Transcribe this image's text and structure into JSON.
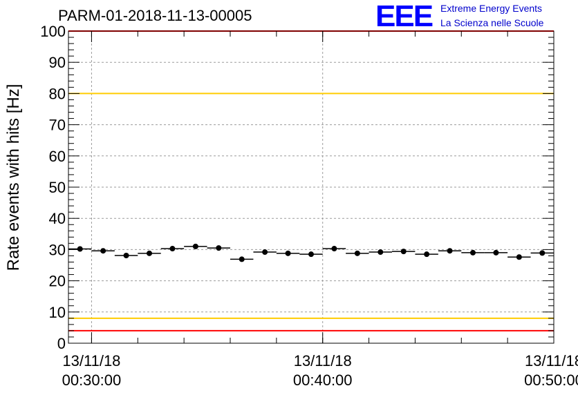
{
  "title": "PARM-01-2018-11-13-00005",
  "logo": {
    "mark": "EEE",
    "line1": "Extreme Energy Events",
    "line2": "La Scienza nelle Scuole",
    "color": "#0000ff"
  },
  "chart_data": {
    "type": "scatter",
    "ylabel": "Rate events with hits [Hz]",
    "ylim": [
      0,
      100
    ],
    "y_ticks": [
      "0",
      "10",
      "20",
      "30",
      "40",
      "50",
      "60",
      "70",
      "80",
      "90",
      "100"
    ],
    "xlim": [
      "00:29:00",
      "00:50:00"
    ],
    "x_ticks": [
      {
        "date": "13/11/18",
        "time": "00:30:00"
      },
      {
        "date": "13/11/18",
        "time": "00:40:00"
      },
      {
        "date": "13/11/18",
        "time": "00:50:00"
      }
    ],
    "grid": true,
    "bin_width_minutes": 1,
    "series": [
      {
        "marker": "circle",
        "color": "#000000",
        "x_minutes_from_00_29": [
          0.5,
          1.5,
          2.5,
          3.5,
          4.5,
          5.5,
          6.5,
          7.5,
          8.5,
          9.5,
          10.5,
          11.5,
          12.5,
          13.5,
          14.5,
          15.5,
          16.5,
          17.5,
          18.5,
          19.5,
          20.5
        ],
        "values": [
          30.2,
          29.6,
          28.1,
          28.8,
          30.3,
          31.0,
          30.5,
          26.9,
          29.2,
          28.8,
          28.5,
          30.3,
          28.8,
          29.2,
          29.4,
          28.5,
          29.6,
          29.0,
          29.0,
          27.6,
          28.9
        ]
      }
    ],
    "reference_lines": [
      {
        "y": 100,
        "color": "#ff0000"
      },
      {
        "y": 80,
        "color": "#ffcc00"
      },
      {
        "y": 8,
        "color": "#ffcc00"
      },
      {
        "y": 4,
        "color": "#ff0000"
      }
    ]
  }
}
